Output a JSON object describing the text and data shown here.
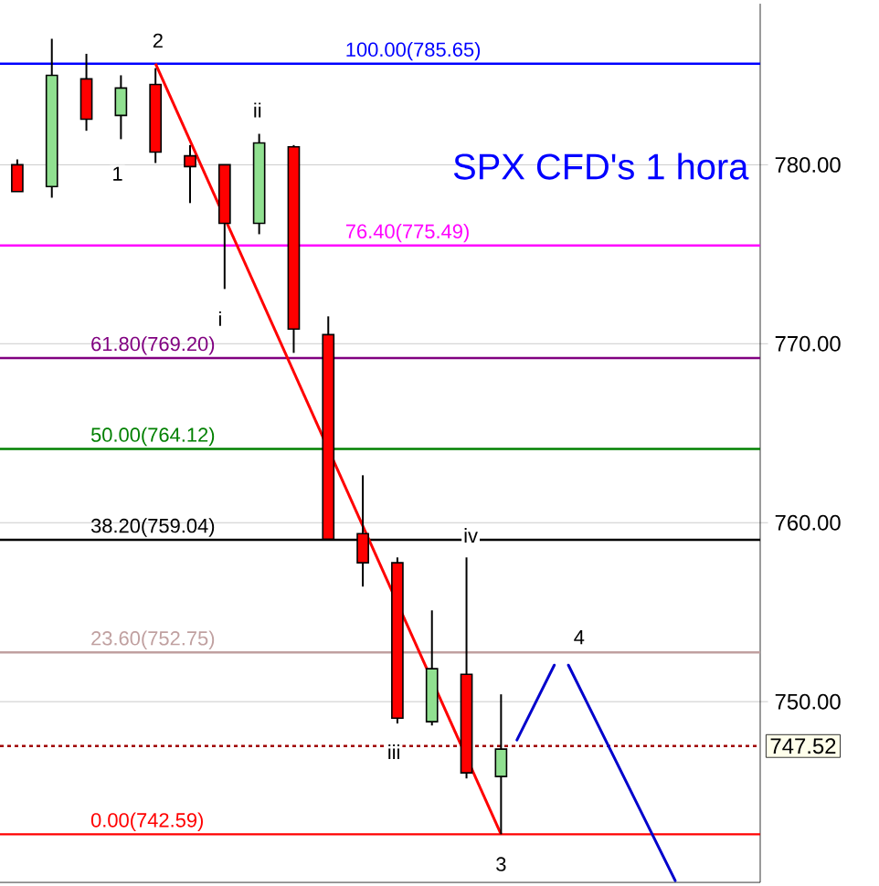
{
  "chart_data": {
    "type": "candlestick",
    "title": "SPX CFD's 1 hora",
    "categories": [
      null,
      null,
      null,
      null,
      null,
      null,
      null,
      null,
      null,
      null,
      null,
      null,
      null,
      null,
      null,
      null,
      null,
      null,
      null,
      null,
      null,
      null
    ],
    "ohlc": [
      [
        780.0,
        780.3,
        778.5,
        778.5
      ],
      [
        778.78,
        787.04,
        778.16,
        785.0
      ],
      [
        784.8,
        786.2,
        781.9,
        782.55
      ],
      [
        782.76,
        785.0,
        781.43,
        784.29
      ],
      [
        784.49,
        785.4,
        780.1,
        780.71
      ],
      [
        780.5,
        781.1,
        777.86,
        779.9
      ],
      [
        780.0,
        780.0,
        773.06,
        776.73
      ],
      [
        776.73,
        781.73,
        776.12,
        781.22
      ],
      [
        781.0,
        781.1,
        769.49,
        770.82
      ],
      [
        770.51,
        771.53,
        759.08,
        759.08
      ],
      [
        759.39,
        762.65,
        756.43,
        757.76
      ],
      [
        757.76,
        758.06,
        748.78,
        749.08
      ],
      [
        748.88,
        755.1,
        748.67,
        751.84
      ],
      [
        751.53,
        758.06,
        745.71,
        746.02
      ],
      [
        745.82,
        750.41,
        742.59,
        747.35
      ],
      null,
      null,
      null,
      null,
      null,
      null,
      null
    ],
    "series": [
      {
        "type": "line",
        "color": "#ff0000",
        "values": [
          null,
          null,
          null,
          null,
          785.65,
          null,
          null,
          null,
          null,
          null,
          null,
          null,
          null,
          null,
          742.59,
          null,
          null,
          null,
          null,
          null,
          null,
          null
        ]
      }
    ],
    "ylim": [
      739.9,
      789.0
    ],
    "yticks": [
      {
        "value": 750,
        "label": "750.00"
      },
      {
        "value": 760,
        "label": "760.00"
      },
      {
        "value": 770,
        "label": "770.00"
      },
      {
        "value": 780,
        "label": "780.00"
      }
    ],
    "tick_labels": "y",
    "grid": "y",
    "ref_lines": [
      {
        "axis": "y",
        "value": 785.65,
        "label": "100.00(785.65)",
        "color": "#0000ff"
      },
      {
        "axis": "y",
        "value": 775.49,
        "label": "76.40(775.49)",
        "color": "#ff00ff"
      },
      {
        "axis": "y",
        "value": 769.2,
        "label": "61.80(769.20)",
        "color": "#800080"
      },
      {
        "axis": "y",
        "value": 764.12,
        "label": "50.00(764.12)",
        "color": "#008000"
      },
      {
        "axis": "y",
        "value": 759.04,
        "label": "38.20(759.04)",
        "color": "#000000"
      },
      {
        "axis": "y",
        "value": 752.75,
        "label": "23.60(752.75)",
        "color": "#c0a0a0"
      },
      {
        "axis": "y",
        "value": 742.59,
        "label": "0.00(742.59)",
        "color": "#ff0000"
      },
      {
        "axis": "y",
        "value": 747.52,
        "label": "747.52",
        "color": "#a00000",
        "line_style": "dotted"
      }
    ],
    "annotations": [
      "2",
      "1",
      "ii",
      "i",
      "iii",
      "iv",
      "4",
      "3"
    ]
  }
}
